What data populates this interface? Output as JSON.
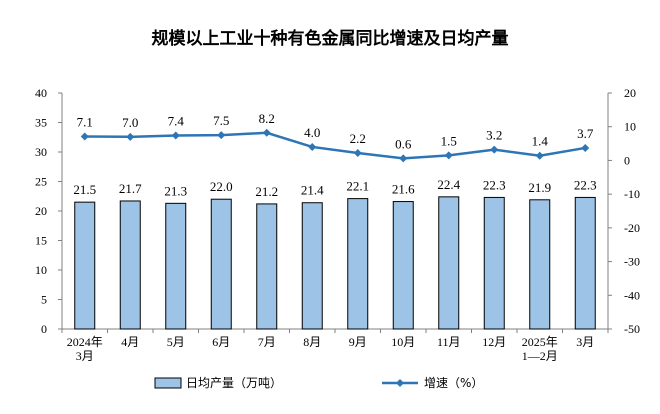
{
  "chart_data": {
    "type": "bar+line",
    "title": "规模以上工业十种有色金属同比增速及日均产量",
    "categories": [
      [
        "2024年",
        "3月"
      ],
      [
        "4月"
      ],
      [
        "5月"
      ],
      [
        "6月"
      ],
      [
        "7月"
      ],
      [
        "8月"
      ],
      [
        "9月"
      ],
      [
        "10月"
      ],
      [
        "11月"
      ],
      [
        "12月"
      ],
      [
        "2025年",
        "1—2月"
      ],
      [
        "3月"
      ]
    ],
    "series": [
      {
        "name": "日均产量（万吨）",
        "type": "bar",
        "axis": "left",
        "color": "#9dc3e6",
        "values": [
          21.5,
          21.7,
          21.3,
          22.0,
          21.2,
          21.4,
          22.1,
          21.6,
          22.4,
          22.3,
          21.9,
          22.3
        ],
        "labels": [
          "21.5",
          "21.7",
          "21.3",
          "22.0",
          "21.2",
          "21.4",
          "22.1",
          "21.6",
          "22.4",
          "22.3",
          "21.9",
          "22.3"
        ]
      },
      {
        "name": "增速（%）",
        "type": "line",
        "axis": "right",
        "color": "#2e75b6",
        "values": [
          7.1,
          7.0,
          7.4,
          7.5,
          8.2,
          4.0,
          2.2,
          0.6,
          1.5,
          3.2,
          1.4,
          3.7
        ],
        "labels": [
          "7.1",
          "7.0",
          "7.4",
          "7.5",
          "8.2",
          "4.0",
          "2.2",
          "0.6",
          "1.5",
          "3.2",
          "1.4",
          "3.7"
        ]
      }
    ],
    "y_left": {
      "min": 0,
      "max": 40,
      "step": 5,
      "ticks": [
        "0",
        "5",
        "10",
        "15",
        "20",
        "25",
        "30",
        "35",
        "40"
      ]
    },
    "y_right": {
      "min": -50,
      "max": 20,
      "step": 10,
      "ticks": [
        "-50",
        "-40",
        "-30",
        "-20",
        "-10",
        "0",
        "10",
        "20"
      ]
    },
    "legend_position": "bottom"
  }
}
